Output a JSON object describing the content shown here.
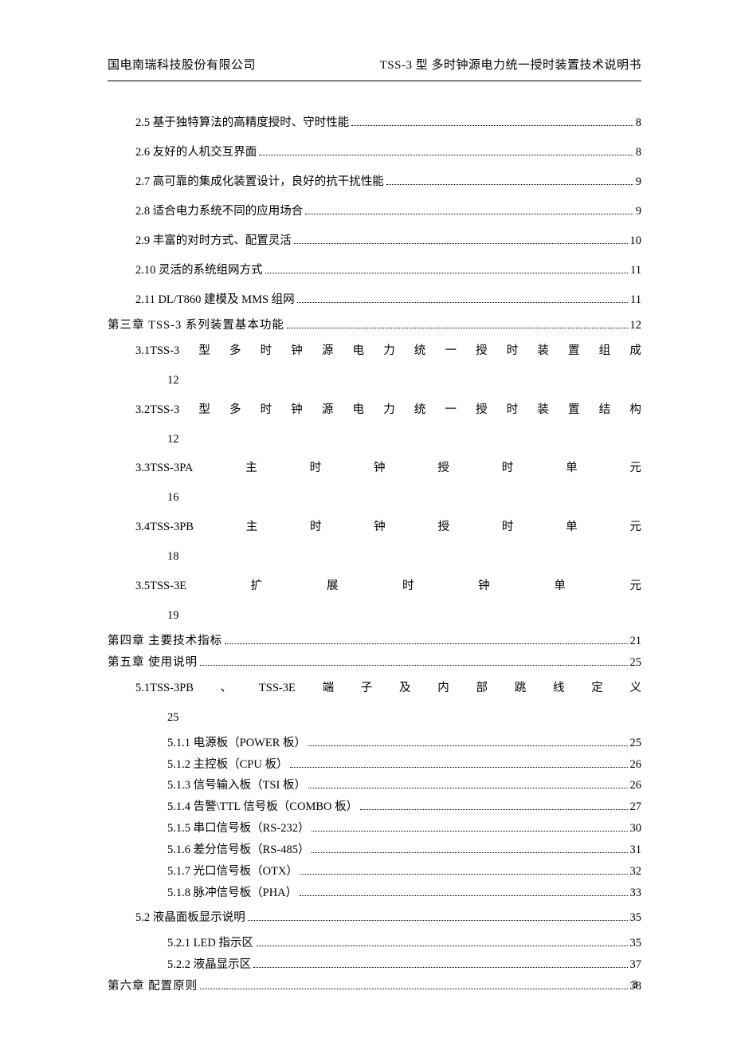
{
  "header": {
    "left": "国电南瑞科技股份有限公司",
    "right": "TSS-3 型  多时钟源电力统一授时装置技术说明书"
  },
  "toc": {
    "s2_5": {
      "text": "2.5 基于独特算法的高精度授时、守时性能",
      "page": "8"
    },
    "s2_6": {
      "text": "2.6 友好的人机交互界面",
      "page": "8"
    },
    "s2_7": {
      "text": "2.7 高可靠的集成化装置设计，良好的抗干扰性能",
      "page": "9"
    },
    "s2_8": {
      "text": "2.8 适合电力系统不同的应用场合",
      "page": "9"
    },
    "s2_9": {
      "text": "2.9 丰富的对时方式、配置灵活",
      "page": "10"
    },
    "s2_10": {
      "text": "2.10 灵活的系统组网方式",
      "page": "11"
    },
    "s2_11": {
      "text": "2.11 DL/T860 建模及 MMS 组网",
      "page": "11"
    },
    "ch3": {
      "text": "第三章 TSS-3 系列装置基本功能",
      "page": "12"
    },
    "s3_1": {
      "chars": [
        "3.1TSS-3",
        "型",
        "多",
        "时",
        "钟",
        "源",
        "电",
        "力",
        "统",
        "一",
        "授",
        "时",
        "装",
        "置",
        "组",
        "成"
      ],
      "page": "12"
    },
    "s3_2": {
      "chars": [
        "3.2TSS-3",
        "型",
        "多",
        "时",
        "钟",
        "源",
        "电",
        "力",
        "统",
        "一",
        "授",
        "时",
        "装",
        "置",
        "结",
        "构"
      ],
      "page": "12"
    },
    "s3_3": {
      "chars": [
        "3.3TSS-3PA",
        "主",
        "时",
        "钟",
        "授",
        "时",
        "单",
        "元"
      ],
      "page": "16"
    },
    "s3_4": {
      "chars": [
        "3.4TSS-3PB",
        "主",
        "时",
        "钟",
        "授",
        "时",
        "单",
        "元"
      ],
      "page": "18"
    },
    "s3_5": {
      "chars": [
        "3.5TSS-3E",
        "扩",
        "展",
        "时",
        "钟",
        "单",
        "元"
      ],
      "page": "19"
    },
    "ch4": {
      "text": "第四章 主要技术指标",
      "page": "21"
    },
    "ch5": {
      "text": "第五章 使用说明",
      "page": "25"
    },
    "s5_1": {
      "chars": [
        "5.1TSS-3PB",
        "、",
        "TSS-3E",
        "端",
        "子",
        "及",
        "内",
        "部",
        "跳",
        "线",
        "定",
        "义"
      ],
      "page": "25"
    },
    "s5_1_1": {
      "text": "5.1.1 电源板（POWER 板）",
      "page": "25"
    },
    "s5_1_2": {
      "text": "5.1.2 主控板（CPU 板）",
      "page": "26"
    },
    "s5_1_3": {
      "text": "5.1.3 信号输入板（TSI 板）",
      "page": "26"
    },
    "s5_1_4": {
      "text": "5.1.4 告警\\TTL 信号板（COMBO 板）",
      "page": "27"
    },
    "s5_1_5": {
      "text": "5.1.5 串口信号板（RS-232）",
      "page": "30"
    },
    "s5_1_6": {
      "text": "5.1.6 差分信号板（RS-485）",
      "page": "31"
    },
    "s5_1_7": {
      "text": "5.1.7 光口信号板（OTX）",
      "page": "32"
    },
    "s5_1_8": {
      "text": "5.1.8 脉冲信号板（PHA）",
      "page": "33"
    },
    "s5_2": {
      "text": "5.2 液晶面板显示说明",
      "page": "35"
    },
    "s5_2_1": {
      "text": "5.2.1 LED 指示区",
      "page": "35"
    },
    "s5_2_2": {
      "text": "5.2.2 液晶显示区",
      "page": "37"
    },
    "ch6": {
      "text": "第六章 配置原则",
      "page": "38"
    }
  },
  "footer": {
    "page_number": "3"
  }
}
